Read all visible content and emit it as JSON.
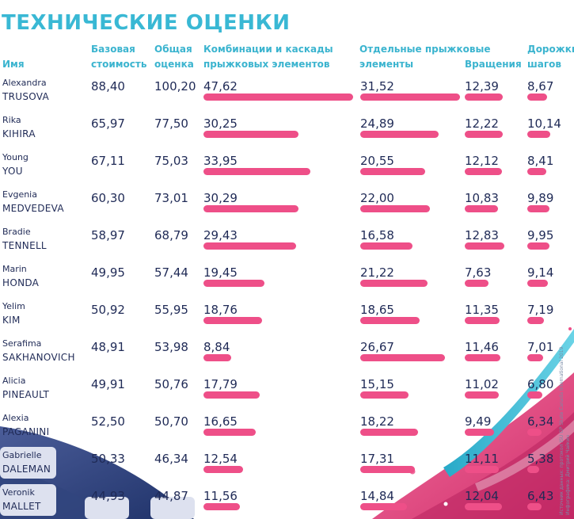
{
  "title": "ТЕХНИЧЕСКИЕ ОЦЕНКИ",
  "headers": {
    "name": "Имя",
    "base_line1": "Базовая",
    "base_line2": "стоимость",
    "total_line1": "Общая",
    "total_line2": "оценка",
    "combo_line1": "Комбинации и каскады",
    "combo_line2": "прыжковых элементов",
    "single_line1": "Отдельные прыжковые",
    "single_line2": "элементы",
    "spins": "Вращения",
    "steps_line1": "Дорожки",
    "steps_line2": "шагов"
  },
  "colors": {
    "title": "#39b8d4",
    "header": "#3bb4cf",
    "text": "#1f2a56",
    "bar": "#ee4f88",
    "pill": "#dde1ef"
  },
  "credits": {
    "line1": "Источник данных: протокол ISU GP Skate Canada International 2019",
    "line2": "Инфографика: Дмитрий Чайкин"
  },
  "chart_data": {
    "type": "table",
    "title": "ТЕХНИЧЕСКИЕ ОЦЕНКИ",
    "columns": [
      "Имя",
      "Базовая стоимость",
      "Общая оценка",
      "Комбинации и каскады прыжковых элементов",
      "Отдельные прыжковые элементы",
      "Вращения",
      "Дорожки шагов"
    ],
    "rows": [
      {
        "first": "Alexandra",
        "last": "TRUSOVA",
        "base": "88,40",
        "total": "100,20",
        "combo": "47,62",
        "single": "31,52",
        "spins": "12,39",
        "steps": "8,67"
      },
      {
        "first": "Rika",
        "last": "KIHIRA",
        "base": "65,97",
        "total": "77,50",
        "combo": "30,25",
        "single": "24,89",
        "spins": "12,22",
        "steps": "10,14"
      },
      {
        "first": "Young",
        "last": "YOU",
        "base": "67,11",
        "total": "75,03",
        "combo": "33,95",
        "single": "20,55",
        "spins": "12,12",
        "steps": "8,41"
      },
      {
        "first": "Evgenia",
        "last": "MEDVEDEVA",
        "base": "60,30",
        "total": "73,01",
        "combo": "30,29",
        "single": "22,00",
        "spins": "10,83",
        "steps": "9,89"
      },
      {
        "first": "Bradie",
        "last": "TENNELL",
        "base": "58,97",
        "total": "68,79",
        "combo": "29,43",
        "single": "16,58",
        "spins": "12,83",
        "steps": "9,95"
      },
      {
        "first": "Marin",
        "last": "HONDA",
        "base": "49,95",
        "total": "57,44",
        "combo": "19,45",
        "single": "21,22",
        "spins": "7,63",
        "steps": "9,14"
      },
      {
        "first": "Yelim",
        "last": "KIM",
        "base": "50,92",
        "total": "55,95",
        "combo": "18,76",
        "single": "18,65",
        "spins": "11,35",
        "steps": "7,19"
      },
      {
        "first": "Serafima",
        "last": "SAKHANOVICH",
        "base": "48,91",
        "total": "53,98",
        "combo": "8,84",
        "single": "26,67",
        "spins": "11,46",
        "steps": "7,01"
      },
      {
        "first": "Alicia",
        "last": "PINEAULT",
        "base": "49,91",
        "total": "50,76",
        "combo": "17,79",
        "single": "15,15",
        "spins": "11,02",
        "steps": "6,80"
      },
      {
        "first": "Alexia",
        "last": "PAGANINI",
        "base": "52,50",
        "total": "50,70",
        "combo": "16,65",
        "single": "18,22",
        "spins": "9,49",
        "steps": "6,34"
      },
      {
        "first": "Gabrielle",
        "last": "DALEMAN",
        "base": "50,33",
        "total": "46,34",
        "combo": "12,54",
        "single": "17,31",
        "spins": "11,11",
        "steps": "5,38"
      },
      {
        "first": "Veronik",
        "last": "MALLET",
        "base": "44,93",
        "total": "44,87",
        "combo": "11,56",
        "single": "14,84",
        "spins": "12,04",
        "steps": "6,43"
      }
    ]
  }
}
